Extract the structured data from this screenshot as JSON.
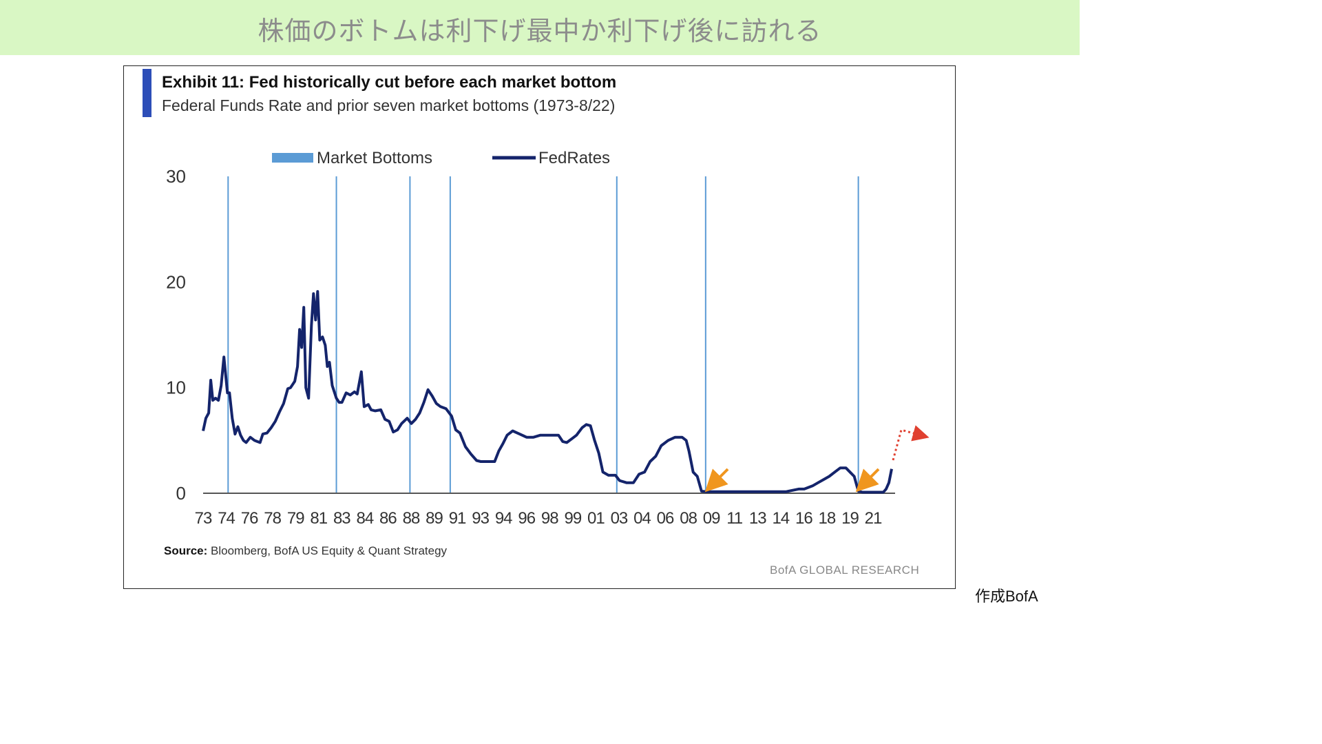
{
  "banner": {
    "title": "株価のボトムは利下げ最中か利下げ後に訪れる"
  },
  "exhibit": {
    "title": "Exhibit 11: Fed historically cut before each market bottom",
    "subtitle": "Federal Funds Rate and prior seven market bottoms (1973-8/22)"
  },
  "source": {
    "label": "Source:",
    "text": "Bloomberg, BofA US Equity & Quant Strategy"
  },
  "watermark": "BofA GLOBAL RESEARCH",
  "credit": "作成BofA",
  "colors": {
    "fed_line": "#14246b",
    "bottom_line": "#5b9bd5",
    "annotation_arrow": "#f0961e",
    "forecast_arrow": "#e04030",
    "banner_bg": "#d9f7c4"
  },
  "chart_data": {
    "type": "line",
    "title": "Exhibit 11: Fed historically cut before each market bottom",
    "legend": [
      {
        "name": "Market Bottoms",
        "kind": "vertical-lines"
      },
      {
        "name": "FedRates",
        "kind": "line"
      }
    ],
    "legend_position": "top",
    "ylim": [
      0,
      30
    ],
    "yticks": [
      0,
      10,
      20,
      30
    ],
    "x_tick_labels": [
      "73",
      "74",
      "76",
      "78",
      "79",
      "81",
      "83",
      "84",
      "86",
      "88",
      "89",
      "91",
      "93",
      "94",
      "96",
      "98",
      "99",
      "01",
      "03",
      "04",
      "06",
      "08",
      "09",
      "11",
      "13",
      "14",
      "16",
      "18",
      "19",
      "21"
    ],
    "grid": false,
    "market_bottoms": [
      1974.8,
      1982.6,
      1987.9,
      1990.8,
      2002.8,
      2009.2,
      2020.2
    ],
    "series": [
      {
        "name": "FedRates",
        "x": [
          1973.0,
          1973.2,
          1973.4,
          1973.55,
          1973.7,
          1973.9,
          1974.1,
          1974.3,
          1974.5,
          1974.75,
          1974.9,
          1975.1,
          1975.3,
          1975.5,
          1975.7,
          1975.9,
          1976.1,
          1976.4,
          1976.7,
          1976.9,
          1977.1,
          1977.3,
          1977.6,
          1977.9,
          1978.2,
          1978.5,
          1978.8,
          1979.1,
          1979.3,
          1979.6,
          1979.8,
          1979.95,
          1980.1,
          1980.25,
          1980.4,
          1980.6,
          1980.8,
          1980.95,
          1981.1,
          1981.25,
          1981.4,
          1981.6,
          1981.8,
          1981.95,
          1982.1,
          1982.3,
          1982.6,
          1982.8,
          1983.0,
          1983.3,
          1983.6,
          1983.9,
          1984.1,
          1984.4,
          1984.6,
          1984.9,
          1985.1,
          1985.4,
          1985.8,
          1986.1,
          1986.4,
          1986.7,
          1987.0,
          1987.3,
          1987.7,
          1988.0,
          1988.3,
          1988.6,
          1988.9,
          1989.2,
          1989.5,
          1989.8,
          1990.1,
          1990.5,
          1990.9,
          1991.2,
          1991.5,
          1991.9,
          1992.3,
          1992.7,
          1993.0,
          1993.5,
          1994.0,
          1994.3,
          1994.6,
          1994.9,
          1995.3,
          1995.8,
          1996.3,
          1996.8,
          1997.3,
          1997.8,
          1998.3,
          1998.6,
          1998.9,
          1999.2,
          1999.6,
          1999.9,
          2000.3,
          2000.6,
          2000.9,
          2001.2,
          2001.5,
          2001.8,
          2002.2,
          2002.7,
          2003.0,
          2003.5,
          2004.0,
          2004.4,
          2004.8,
          2005.2,
          2005.6,
          2006.0,
          2006.5,
          2007.0,
          2007.5,
          2007.8,
          2008.0,
          2008.3,
          2008.6,
          2008.9,
          2009.2,
          2010,
          2011,
          2012,
          2013,
          2014,
          2015,
          2015.9,
          2016.3,
          2016.9,
          2017.3,
          2017.7,
          2018.1,
          2018.5,
          2018.9,
          2019.3,
          2019.6,
          2019.9,
          2020.2,
          2020.5,
          2021,
          2021.5,
          2022.0,
          2022.2,
          2022.4,
          2022.6
        ],
        "values": [
          5.9,
          7.1,
          7.6,
          10.7,
          8.8,
          9.0,
          8.8,
          10.2,
          12.9,
          9.5,
          9.5,
          7.1,
          5.6,
          6.3,
          5.5,
          5.0,
          4.8,
          5.3,
          5.0,
          4.9,
          4.8,
          5.6,
          5.7,
          6.2,
          6.8,
          7.7,
          8.5,
          9.9,
          10.0,
          10.6,
          12.0,
          15.5,
          13.8,
          17.6,
          10.0,
          9.0,
          15.9,
          18.9,
          16.4,
          19.1,
          14.5,
          14.8,
          14.0,
          12.0,
          12.4,
          10.2,
          9.0,
          8.6,
          8.6,
          9.5,
          9.3,
          9.6,
          9.4,
          11.5,
          8.2,
          8.4,
          7.9,
          7.8,
          7.9,
          7.0,
          6.8,
          5.8,
          6.0,
          6.6,
          7.1,
          6.6,
          7.0,
          7.6,
          8.6,
          9.8,
          9.2,
          8.5,
          8.2,
          8.0,
          7.3,
          6.0,
          5.7,
          4.4,
          3.7,
          3.1,
          3.0,
          3.0,
          3.0,
          4.0,
          4.7,
          5.5,
          5.9,
          5.6,
          5.3,
          5.3,
          5.5,
          5.5,
          5.5,
          5.5,
          4.9,
          4.8,
          5.2,
          5.5,
          6.2,
          6.5,
          6.4,
          5.0,
          3.8,
          2.0,
          1.7,
          1.7,
          1.2,
          1.0,
          1.0,
          1.8,
          2.0,
          3.0,
          3.5,
          4.5,
          5.0,
          5.3,
          5.3,
          5.0,
          4.0,
          2.0,
          1.6,
          0.2,
          0.15,
          0.15,
          0.15,
          0.15,
          0.15,
          0.15,
          0.15,
          0.4,
          0.4,
          0.7,
          1.0,
          1.3,
          1.6,
          2.0,
          2.4,
          2.4,
          2.0,
          1.6,
          0.2,
          0.1,
          0.1,
          0.1,
          0.1,
          0.4,
          1.0,
          2.3
        ]
      }
    ]
  }
}
